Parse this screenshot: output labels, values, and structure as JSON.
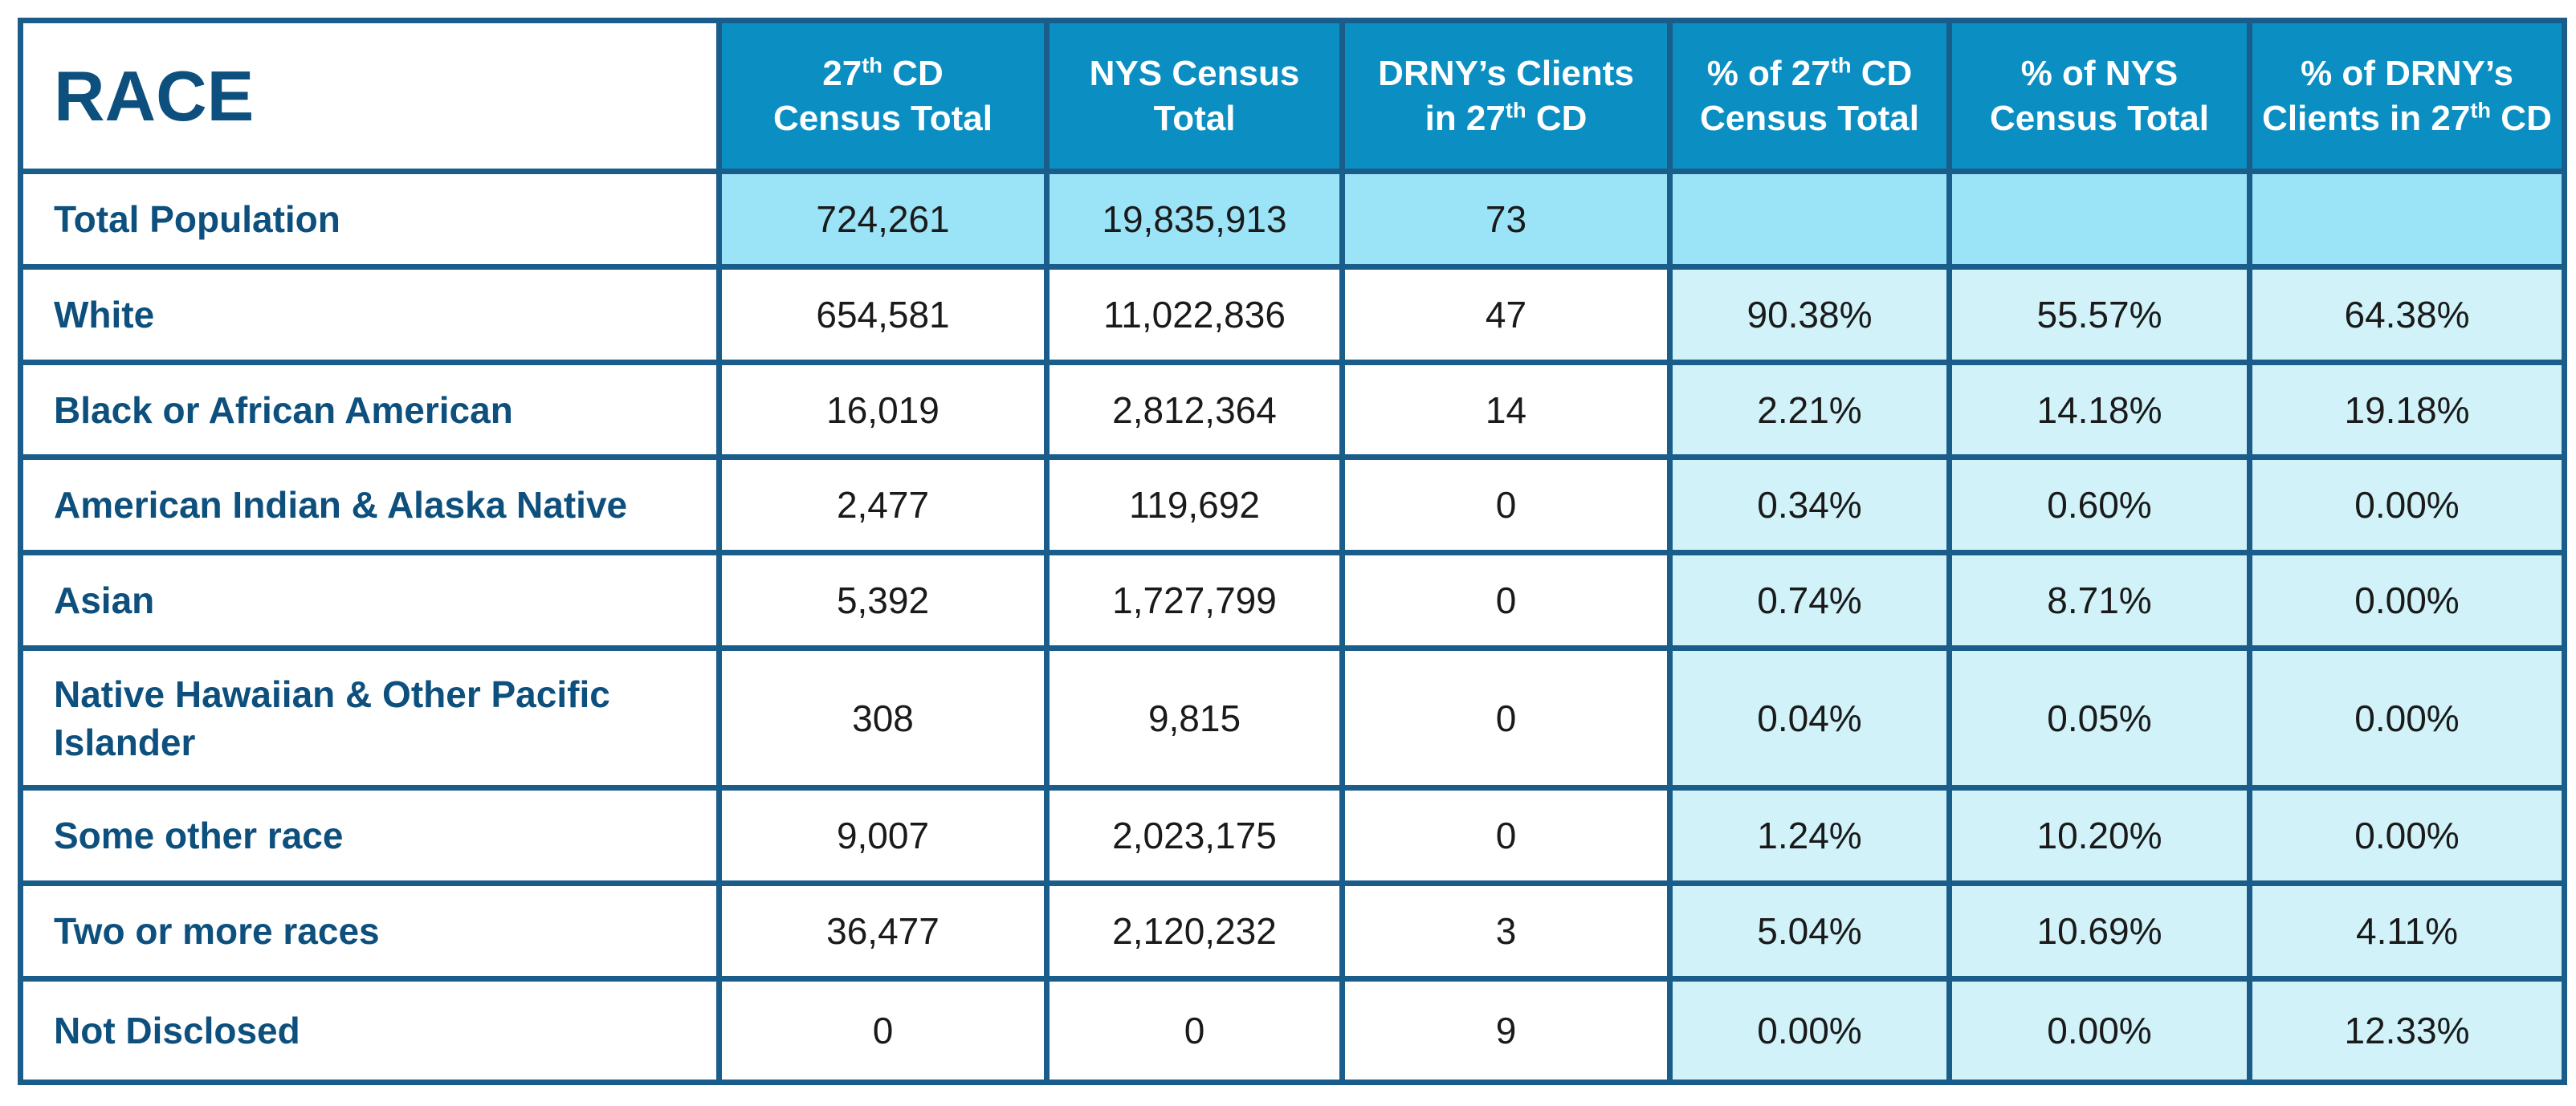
{
  "table": {
    "corner_title": "RACE",
    "headers": [
      {
        "line1_pre": "27",
        "line1_sup": "th",
        "line1_post": " CD",
        "line2_pre": "Census Total",
        "line2_sup": "",
        "line2_post": ""
      },
      {
        "line1_pre": "NYS Census",
        "line1_sup": "",
        "line1_post": "",
        "line2_pre": "Total",
        "line2_sup": "",
        "line2_post": ""
      },
      {
        "line1_pre": "DRNY’s Clients",
        "line1_sup": "",
        "line1_post": "",
        "line2_pre": "in 27",
        "line2_sup": "th",
        "line2_post": " CD"
      },
      {
        "line1_pre": "% of 27",
        "line1_sup": "th",
        "line1_post": " CD",
        "line2_pre": "Census Total",
        "line2_sup": "",
        "line2_post": ""
      },
      {
        "line1_pre": "% of NYS",
        "line1_sup": "",
        "line1_post": "",
        "line2_pre": "Census Total",
        "line2_sup": "",
        "line2_post": ""
      },
      {
        "line1_pre": "% of DRNY’s",
        "line1_sup": "",
        "line1_post": "",
        "line2_pre": "Clients in 27",
        "line2_sup": "th",
        "line2_post": " CD"
      }
    ],
    "rows": [
      {
        "label": "Total Population",
        "cd27": "724,261",
        "nys": "19,835,913",
        "drny": "73",
        "pct_cd27": "",
        "pct_nys": "",
        "pct_drny": ""
      },
      {
        "label": "White",
        "cd27": "654,581",
        "nys": "11,022,836",
        "drny": "47",
        "pct_cd27": "90.38%",
        "pct_nys": "55.57%",
        "pct_drny": "64.38%"
      },
      {
        "label": "Black or African American",
        "cd27": "16,019",
        "nys": "2,812,364",
        "drny": "14",
        "pct_cd27": "2.21%",
        "pct_nys": "14.18%",
        "pct_drny": "19.18%"
      },
      {
        "label": "American Indian & Alaska Native",
        "cd27": "2,477",
        "nys": "119,692",
        "drny": "0",
        "pct_cd27": "0.34%",
        "pct_nys": "0.60%",
        "pct_drny": "0.00%"
      },
      {
        "label": "Asian",
        "cd27": "5,392",
        "nys": "1,727,799",
        "drny": "0",
        "pct_cd27": "0.74%",
        "pct_nys": "8.71%",
        "pct_drny": "0.00%"
      },
      {
        "label": "Native Hawaiian & Other Pacific Islander",
        "cd27": "308",
        "nys": "9,815",
        "drny": "0",
        "pct_cd27": "0.04%",
        "pct_nys": "0.05%",
        "pct_drny": "0.00%"
      },
      {
        "label": "Some other race",
        "cd27": "9,007",
        "nys": "2,023,175",
        "drny": "0",
        "pct_cd27": "1.24%",
        "pct_nys": "10.20%",
        "pct_drny": "0.00%"
      },
      {
        "label": "Two or more races",
        "cd27": "36,477",
        "nys": "2,120,232",
        "drny": "3",
        "pct_cd27": "5.04%",
        "pct_nys": "10.69%",
        "pct_drny": "4.11%"
      },
      {
        "label": "Not Disclosed",
        "cd27": "0",
        "nys": "0",
        "drny": "9",
        "pct_cd27": "0.00%",
        "pct_nys": "0.00%",
        "pct_drny": "12.33%"
      }
    ]
  },
  "colors": {
    "header_bg": "#0b8fc2",
    "border": "#1a5d8a",
    "label_text": "#0d4f7d",
    "total_row_bg": "#9be3f6",
    "pct_bg": "#d0f2f8"
  }
}
